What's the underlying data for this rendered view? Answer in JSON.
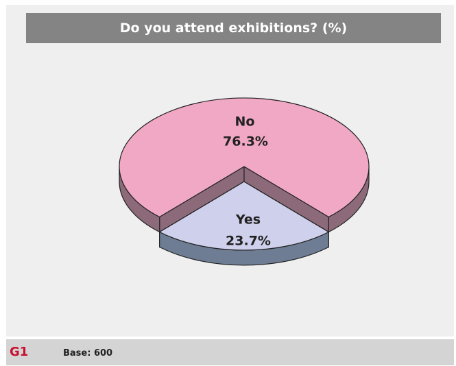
{
  "chart_data": {
    "type": "pie",
    "title": "Do you attend exhibitions? (%)",
    "slices": [
      {
        "label": "No",
        "value": 76.3,
        "value_label": "76.3%",
        "color": "#f0a8c4",
        "side_color": "#8c6a7a"
      },
      {
        "label": "Yes",
        "value": 23.7,
        "value_label": "23.7%",
        "color": "#cfd0ec",
        "side_color": "#6e7d93"
      }
    ],
    "style": "3d-exploded",
    "legend": "none"
  },
  "footer": {
    "figure_tag": "G1",
    "base": "Base: 600"
  },
  "colors": {
    "panel": "#efefef",
    "title_bar": "#848484",
    "footer": "#d4d4d4",
    "figure_tag": "#c8102e"
  }
}
